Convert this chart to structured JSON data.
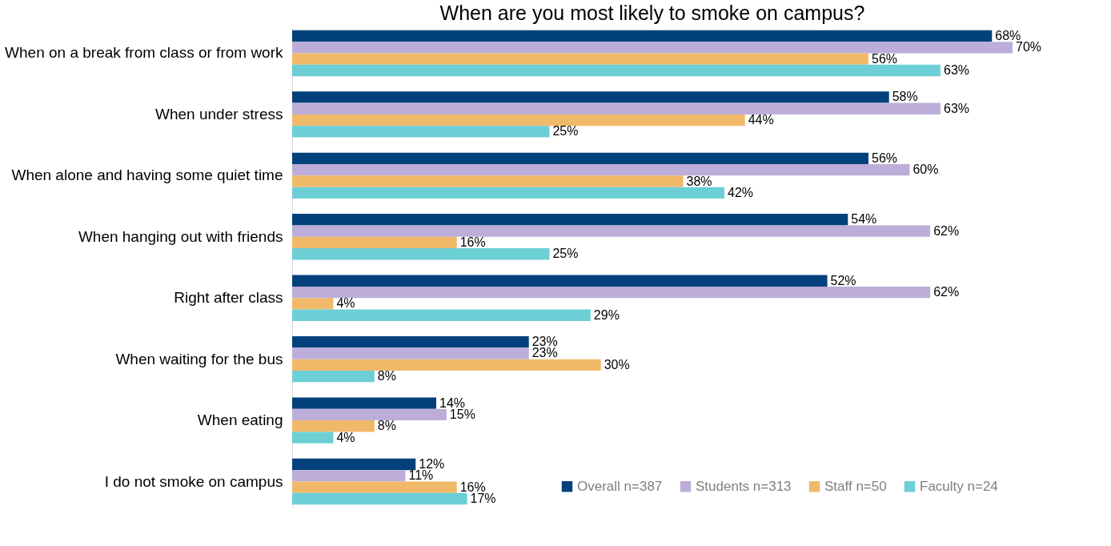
{
  "chart_data": {
    "type": "bar",
    "orientation": "horizontal",
    "title": "When are you most likely to smoke on campus?",
    "categories": [
      "When on a break from class or from work",
      "When under stress",
      "When alone and having some quiet time",
      "When hanging out with friends",
      "Right after class",
      "When waiting for the bus",
      "When eating",
      "I do not smoke on campus"
    ],
    "series": [
      {
        "name": "Overall n=387",
        "color": "#02417c",
        "values": [
          68,
          58,
          56,
          54,
          52,
          23,
          14,
          12
        ],
        "value_labels": [
          "68%",
          "58%",
          "56%",
          "54%",
          "52%",
          "23%",
          "14%",
          "12%"
        ]
      },
      {
        "name": "Students n=313",
        "color": "#bcaed8",
        "values": [
          70,
          63,
          60,
          62,
          62,
          23,
          15,
          11
        ],
        "value_labels": [
          "70%",
          "63%",
          "60%",
          "62%",
          "62%",
          "23%",
          "15%",
          "11%"
        ]
      },
      {
        "name": "Staff n=50",
        "color": "#f0b96a",
        "values": [
          56,
          44,
          38,
          16,
          4,
          30,
          8,
          16
        ],
        "value_labels": [
          "56%",
          "44%",
          "38%",
          "16%",
          "4%",
          "30%",
          "8%",
          "16%"
        ]
      },
      {
        "name": "Faculty n=24",
        "color": "#6dcfd6",
        "values": [
          63,
          25,
          42,
          25,
          29,
          8,
          4,
          17
        ],
        "value_labels": [
          "63%",
          "25%",
          "42%",
          "25%",
          "29%",
          "8%",
          "4%",
          "17%"
        ]
      }
    ],
    "grid": false,
    "legend": "bottom right"
  }
}
